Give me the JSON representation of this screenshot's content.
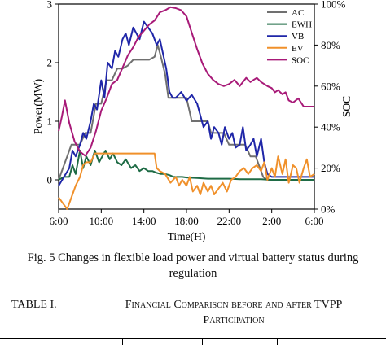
{
  "chart_data": {
    "type": "line",
    "xlabel": "Time(H)",
    "ylabel": "Power(MW)",
    "y2label": "SOC",
    "x_ticks": [
      "6:00",
      "10:00",
      "14:00",
      "18:00",
      "22:00",
      "2:00",
      "6:00"
    ],
    "x_range_hours": [
      6,
      30
    ],
    "ylim": [
      -0.5,
      3
    ],
    "y_ticks": [
      "0",
      "1",
      "2",
      "3"
    ],
    "y2lim": [
      0,
      100
    ],
    "y2_ticks": [
      "0%",
      "20%",
      "40%",
      "60%",
      "80%",
      "100%"
    ],
    "legend_position": "top-right",
    "series": [
      {
        "name": "AC",
        "axis": "left",
        "color": "#707070",
        "x": [
          6.0,
          6.8,
          7.2,
          7.6,
          8.0,
          8.5,
          9.0,
          9.5,
          10.0,
          10.5,
          11.0,
          11.5,
          12.0,
          12.5,
          13.0,
          13.5,
          14.0,
          14.5,
          15.0,
          15.3,
          15.6,
          16.0,
          16.3,
          16.7,
          17.0,
          17.5,
          18.0,
          18.5,
          19.0,
          19.5,
          20.0,
          20.3,
          21.0,
          21.5,
          22.0,
          22.5,
          23.0,
          23.5,
          24.0,
          24.5,
          24.9,
          25.2,
          25.6,
          26.0,
          26.5,
          27.0,
          28.0,
          29.0,
          30.0
        ],
        "y": [
          0,
          0.4,
          0.6,
          0.6,
          0.6,
          0.8,
          0.8,
          1.3,
          1.3,
          1.7,
          1.7,
          1.9,
          1.9,
          1.95,
          2.05,
          2.05,
          2.05,
          2.05,
          2.1,
          2.3,
          2.1,
          1.8,
          1.4,
          1.4,
          1.4,
          1.4,
          1.4,
          1.0,
          1.0,
          1.0,
          1.0,
          0.8,
          0.8,
          0.8,
          0.6,
          0.6,
          0.6,
          0.6,
          0.4,
          0.4,
          0.2,
          0.05,
          0,
          0,
          0,
          0,
          0,
          0,
          0
        ]
      },
      {
        "name": "EWH",
        "axis": "left",
        "color": "#1e6b45",
        "x": [
          6.0,
          6.5,
          7.0,
          7.3,
          7.6,
          8.0,
          8.3,
          8.6,
          9.0,
          9.4,
          9.8,
          10.1,
          10.4,
          10.8,
          11.1,
          11.5,
          11.9,
          12.3,
          12.8,
          13.2,
          13.6,
          14.0,
          14.4,
          14.8,
          15.2,
          15.6,
          16.0,
          16.4,
          16.8,
          17.2,
          17.6,
          18.0,
          19.0,
          20.0,
          21.0,
          22.0,
          23.0,
          24.0,
          25.0,
          26.0,
          27.0,
          28.0,
          29.0,
          30.0
        ],
        "y": [
          0,
          0.05,
          0.05,
          0.25,
          0.1,
          0.5,
          0.2,
          0.4,
          0.25,
          0.5,
          0.3,
          0.4,
          0.5,
          0.35,
          0.45,
          0.3,
          0.25,
          0.35,
          0.2,
          0.25,
          0.15,
          0.2,
          0.15,
          0.15,
          0.12,
          0.1,
          0.1,
          0.08,
          0.05,
          0.05,
          0.05,
          0.04,
          0.03,
          0.02,
          0.02,
          0.02,
          0.01,
          0.01,
          0.01,
          0,
          0,
          0,
          0,
          0
        ]
      },
      {
        "name": "VB",
        "axis": "left",
        "color": "#1f26a8",
        "x": [
          6.0,
          6.5,
          7.0,
          7.3,
          7.6,
          8.0,
          8.3,
          8.6,
          9.0,
          9.3,
          9.6,
          10.0,
          10.3,
          10.6,
          11.0,
          11.3,
          11.6,
          12.0,
          12.3,
          12.6,
          13.0,
          13.3,
          13.6,
          14.0,
          14.4,
          14.8,
          15.2,
          15.5,
          15.8,
          16.1,
          16.4,
          16.7,
          17.0,
          17.5,
          18.0,
          18.5,
          19.0,
          19.3,
          19.6,
          20.0,
          20.3,
          20.6,
          21.0,
          21.3,
          21.6,
          22.0,
          22.3,
          22.6,
          23.0,
          23.3,
          23.6,
          24.0,
          24.3,
          24.6,
          25.0,
          25.3,
          25.6,
          26.0,
          26.5,
          27.0,
          28.0,
          29.0,
          30.0
        ],
        "y": [
          -0.1,
          0.05,
          0.2,
          0.5,
          0.4,
          0.6,
          0.8,
          0.7,
          1.0,
          1.3,
          1.2,
          1.7,
          1.4,
          2.0,
          1.9,
          2.2,
          2.1,
          2.4,
          2.5,
          2.3,
          2.6,
          2.5,
          2.4,
          2.7,
          2.6,
          2.5,
          2.3,
          2.4,
          2.15,
          1.9,
          1.5,
          1.4,
          1.4,
          1.5,
          1.35,
          1.45,
          1.3,
          1.1,
          0.9,
          1.0,
          0.7,
          0.9,
          0.8,
          0.6,
          0.9,
          0.7,
          0.8,
          0.55,
          0.6,
          0.9,
          0.5,
          0.6,
          0.7,
          0.4,
          0.7,
          0.3,
          0.1,
          0.05,
          0.05,
          0.05,
          0.05,
          0.05,
          0.05
        ]
      },
      {
        "name": "EV",
        "axis": "left",
        "color": "#f0902a",
        "x": [
          6.0,
          6.4,
          6.8,
          7.2,
          7.6,
          8.0,
          8.3,
          8.6,
          9.0,
          9.4,
          9.8,
          10.2,
          11.0,
          12.0,
          13.0,
          14.0,
          15.0,
          15.2,
          15.5,
          16.0,
          16.5,
          17.0,
          17.3,
          17.6,
          18.0,
          18.3,
          18.6,
          19.0,
          19.3,
          19.6,
          20.0,
          20.3,
          20.6,
          21.0,
          21.4,
          21.8,
          22.2,
          22.6,
          23.0,
          23.4,
          23.8,
          24.2,
          24.6,
          25.0,
          25.3,
          25.6,
          26.0,
          26.3,
          26.6,
          27.0,
          27.3,
          27.6,
          28.0,
          28.3,
          28.6,
          29.0,
          29.3,
          29.6,
          30.0
        ],
        "y": [
          -0.3,
          -0.4,
          -0.5,
          -0.3,
          -0.1,
          0.05,
          0.25,
          0.3,
          0.3,
          0.45,
          0.45,
          0.45,
          0.45,
          0.45,
          0.45,
          0.45,
          0.45,
          0.2,
          0.15,
          0.1,
          -0.05,
          0.05,
          -0.1,
          0.0,
          -0.1,
          0.05,
          -0.2,
          -0.1,
          -0.25,
          -0.05,
          -0.2,
          -0.1,
          -0.25,
          -0.15,
          -0.05,
          -0.2,
          0.0,
          0.05,
          0.15,
          0.2,
          0.1,
          0.2,
          0.25,
          0.15,
          0.3,
          0.0,
          0.2,
          0.05,
          0.4,
          0.1,
          0.35,
          -0.05,
          0.25,
          0.2,
          -0.05,
          0.2,
          0.35,
          0.05,
          0.1
        ]
      },
      {
        "name": "SOC",
        "axis": "right",
        "color": "#a81a78",
        "x": [
          6.0,
          6.3,
          6.6,
          7.0,
          7.5,
          8.0,
          8.5,
          9.0,
          9.5,
          10.0,
          10.5,
          11.0,
          11.5,
          12.0,
          12.5,
          13.0,
          13.5,
          14.0,
          14.5,
          15.0,
          15.5,
          16.0,
          16.5,
          17.0,
          17.5,
          18.0,
          18.5,
          19.0,
          19.5,
          20.0,
          20.5,
          21.0,
          21.5,
          22.0,
          22.5,
          23.0,
          23.3,
          23.6,
          24.0,
          24.3,
          24.6,
          25.0,
          25.3,
          25.6,
          26.0,
          26.3,
          26.6,
          27.0,
          27.3,
          27.6,
          28.0,
          28.5,
          29.0,
          29.5,
          30.0
        ],
        "y": [
          38,
          45,
          53,
          42,
          33,
          28,
          26,
          30,
          38,
          48,
          54,
          61,
          63,
          69,
          75,
          79,
          84,
          87,
          90,
          92,
          96,
          97,
          98.5,
          98,
          97,
          94,
          86,
          78,
          71,
          66,
          63,
          61,
          60,
          61,
          63,
          60,
          62,
          64,
          62,
          63,
          64,
          62,
          61,
          60,
          59,
          57,
          58,
          56,
          57,
          53,
          52,
          54,
          50,
          50,
          50
        ]
      }
    ]
  },
  "caption": {
    "line1": "Fig. 5 Changes in flexible load power and virtual battery status during",
    "line2": "regulation"
  },
  "table_title": {
    "number": "TABLE I.",
    "description": "Financial Comparison before and after TVPP Participation"
  }
}
